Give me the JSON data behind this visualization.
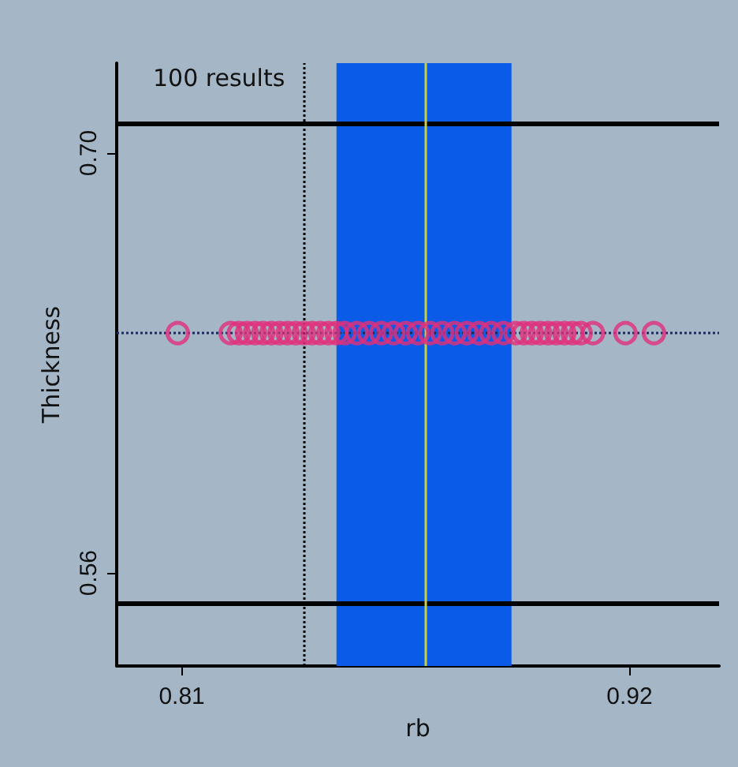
{
  "chart_data": {
    "type": "scatter",
    "xlabel": "rb",
    "ylabel": "Thickness",
    "annotations": [
      "100 results"
    ],
    "x": [
      0.809,
      0.822,
      0.824,
      0.826,
      0.828,
      0.83,
      0.832,
      0.834,
      0.836,
      0.838,
      0.84,
      0.842,
      0.844,
      0.846,
      0.848,
      0.85,
      0.853,
      0.856,
      0.859,
      0.862,
      0.865,
      0.868,
      0.871,
      0.874,
      0.877,
      0.88,
      0.883,
      0.886,
      0.889,
      0.892,
      0.894,
      0.896,
      0.898,
      0.9,
      0.902,
      0.904,
      0.906,
      0.908,
      0.911,
      0.919,
      0.926
    ],
    "series": [
      {
        "color": "#e0307a",
        "values": [
          0.64,
          0.64,
          0.64,
          0.64,
          0.64,
          0.64,
          0.64,
          0.64,
          0.64,
          0.64,
          0.64,
          0.64,
          0.64,
          0.64,
          0.64,
          0.64,
          0.64,
          0.64,
          0.64,
          0.64,
          0.64,
          0.64,
          0.64,
          0.64,
          0.64,
          0.64,
          0.64,
          0.64,
          0.64,
          0.64,
          0.64,
          0.64,
          0.64,
          0.64,
          0.64,
          0.64,
          0.64,
          0.64,
          0.64,
          0.64,
          0.64
        ]
      }
    ],
    "xlim": [
      0.794,
      0.942
    ],
    "ylim": [
      0.529,
      0.73
    ],
    "xticks": [
      0.81,
      0.92
    ],
    "yticks": [
      0.56,
      {
        "value": 0.7,
        "label": "0.70"
      }
    ],
    "ref_lines": [
      {
        "axis": "y",
        "value": 0.71,
        "color": "#000000",
        "line_style": "solid"
      },
      {
        "axis": "y",
        "value": 0.55,
        "color": "#000000",
        "line_style": "solid"
      },
      {
        "axis": "y",
        "value": 0.64,
        "color": "#1c2a5a",
        "line_style": "dotted"
      },
      {
        "axis": "x",
        "value": 0.84,
        "color": "#000000",
        "line_style": "dotted"
      },
      {
        "axis": "x",
        "value": 0.87,
        "color": "#c8d040",
        "line_style": "solid"
      }
    ],
    "bands": [
      {
        "axis": "x",
        "from": 0.848,
        "to": 0.891,
        "color": "#0a5ce8"
      }
    ],
    "marker": "circle",
    "grid": false
  }
}
